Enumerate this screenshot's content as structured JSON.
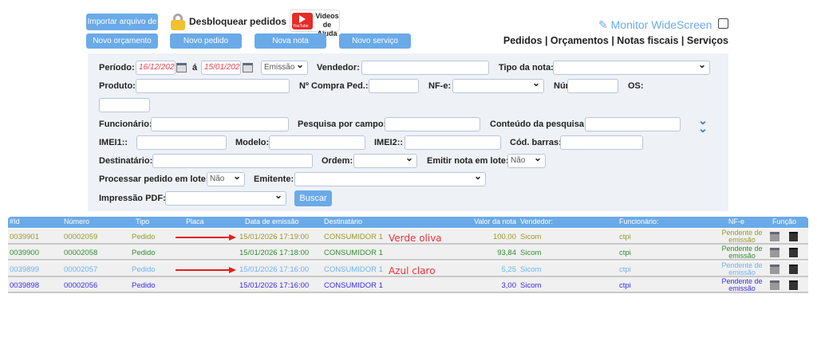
{
  "toolbar": {
    "import": "Importar arquivo de",
    "unlock": "Desbloquear pedidos",
    "video_top": "Videos",
    "video_bottom": "de Ajuda",
    "youtube": "YouTube",
    "new_quote": "Novo orçamento",
    "new_order": "Novo pedido",
    "new_invoice": "Nova nota",
    "new_service": "Novo serviço",
    "monitor": "Monitor WideScreen"
  },
  "nav": {
    "text": "Pedidos | Orçamentos | Notas fiscais | Serviços"
  },
  "filters": {
    "periodo": "Período:",
    "date_from": "16/12/2025",
    "sep": "á",
    "date_to": "15/01/2026",
    "date_type": "Emissão",
    "vendedor": "Vendedor:",
    "tipo_nota": "Tipo da nota:",
    "produto": "Produto:",
    "compra": "Nº Compra Ped.:",
    "nfe": "NF-e:",
    "numero": "Número:",
    "os": "OS:",
    "funcionario": "Funcionário:",
    "pesquisa_campo": "Pesquisa por campo:",
    "conteudo": "Conteúdo da pesquisa:",
    "imei1": "IMEI1::",
    "modelo": "Modelo:",
    "imei2": "IMEI2::",
    "cod_barras": "Cód. barras:",
    "destinatario": "Destinatário:",
    "ordem": "Ordem:",
    "emitir_lote": "Emitir nota em lote:",
    "emitir_lote_val": "Não",
    "processar_lote": "Processar pedido em lote:",
    "processar_lote_val": "Não",
    "emitente": "Emitente:",
    "impressao": "Impressão PDF:",
    "buscar": "Buscar"
  },
  "table": {
    "headers": [
      "#Id",
      "Número",
      "Tipo",
      "Placa",
      "Data de emissão",
      "Destinatário",
      "Valor da nota",
      "Vendedor:",
      "Funcionário:",
      "NF-e",
      "Função"
    ],
    "rows": [
      {
        "id": "0039901",
        "numero": "00002059",
        "tipo": "Pedido",
        "placa": "",
        "data": "15/01/2026 17:19:00",
        "dest": "CONSUMIDOR 1",
        "valor": "100,00",
        "vendedor": "Sicom",
        "func": "ctpi",
        "nfe1": "Pendente de",
        "nfe2": "emissão",
        "color": "#979a2c"
      },
      {
        "id": "0039900",
        "numero": "00002058",
        "tipo": "Pedido",
        "placa": "",
        "data": "15/01/2026 17:18:00",
        "dest": "CONSUMIDOR 1",
        "valor": "93,84",
        "vendedor": "Sicom",
        "func": "ctpi",
        "nfe1": "Pendente de",
        "nfe2": "emissão",
        "color": "#2f8f2f"
      },
      {
        "id": "0039899",
        "numero": "00002057",
        "tipo": "Pedido",
        "placa": "",
        "data": "15/01/2026 17:16:00",
        "dest": "CONSUMIDOR 1",
        "valor": "5,25",
        "vendedor": "Sicom",
        "func": "ctpi",
        "nfe1": "Pendente de",
        "nfe2": "emissão",
        "color": "#6cb4f2"
      },
      {
        "id": "0039898",
        "numero": "00002056",
        "tipo": "Pedido",
        "placa": "",
        "data": "15/01/2026 17:16:00",
        "dest": "CONSUMIDOR 1",
        "valor": "3,00",
        "vendedor": "Sicom",
        "func": "ctpi",
        "nfe1": "Pendente de",
        "nfe2": "emissão",
        "color": "#3a2ee6"
      }
    ]
  },
  "annotations": {
    "olive": "Verde oliva",
    "lightblue": "Azul claro"
  }
}
